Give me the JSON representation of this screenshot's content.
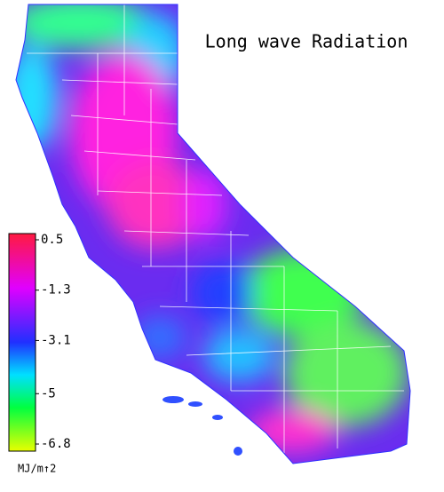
{
  "title": "Long wave Radiation",
  "colorbar": {
    "ticks": [
      0.5,
      -1.3,
      -3.1,
      -5.0,
      -6.8
    ],
    "unit": "MJ/m↑2"
  }
}
